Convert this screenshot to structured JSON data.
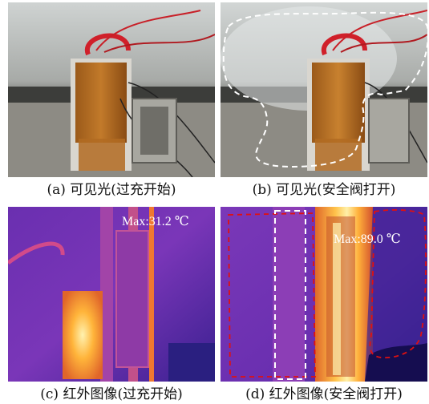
{
  "panels": [
    {
      "caption": "(a)  可见光(过充开始)"
    },
    {
      "caption": "(b)  可见光(安全阀打开)"
    },
    {
      "caption": "(c)  红外图像(过充开始)",
      "max_label": "Max:31.2 ℃"
    },
    {
      "caption": "(d)  红外图像(安全阀打开)",
      "max_label": "Max:89.0 ℃"
    }
  ],
  "colors": {
    "annotation_white": "#ffffff",
    "annotation_red": "#e01010"
  }
}
